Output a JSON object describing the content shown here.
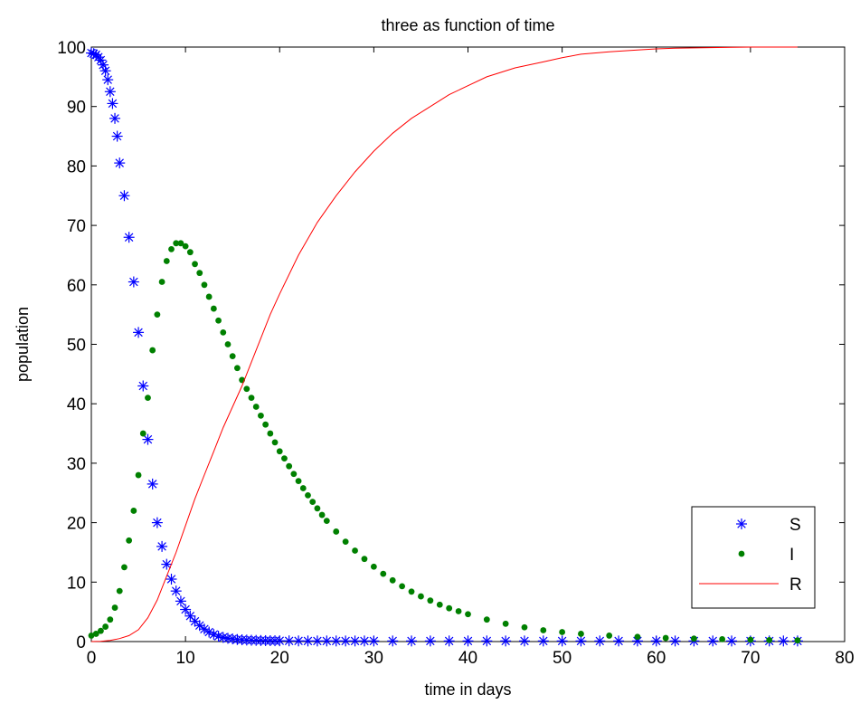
{
  "chart_data": {
    "type": "scatter",
    "title": "three as function of time",
    "xlabel": "time in days",
    "ylabel": "population",
    "xlim": [
      0,
      80
    ],
    "ylim": [
      0,
      100
    ],
    "xticks": [
      "0",
      "10",
      "20",
      "30",
      "40",
      "50",
      "60",
      "70",
      "80"
    ],
    "yticks": [
      "0",
      "10",
      "20",
      "30",
      "40",
      "50",
      "60",
      "70",
      "80",
      "90",
      "100"
    ],
    "grid": false,
    "legend_position": "bottom-right",
    "series": [
      {
        "name": "S",
        "marker": "asterisk",
        "color": "#0000ff",
        "x": [
          0,
          0.25,
          0.5,
          0.75,
          1,
          1.25,
          1.5,
          1.75,
          2,
          2.25,
          2.5,
          2.75,
          3,
          3.5,
          4,
          4.5,
          5,
          5.5,
          6,
          6.5,
          7,
          7.5,
          8,
          8.5,
          9,
          9.5,
          10,
          10.5,
          11,
          11.5,
          12,
          12.5,
          13,
          13.5,
          14,
          14.5,
          15,
          15.5,
          16,
          16.5,
          17,
          17.5,
          18,
          18.5,
          19,
          19.5,
          20,
          21,
          22,
          23,
          24,
          25,
          26,
          27,
          28,
          29,
          30,
          32,
          34,
          36,
          38,
          40,
          42,
          44,
          46,
          48,
          50,
          52,
          54,
          56,
          58,
          60,
          62,
          64,
          66,
          68,
          70,
          72,
          73.5,
          75
        ],
        "y": [
          99,
          98.9,
          98.7,
          98.3,
          97.8,
          97,
          96,
          94.5,
          92.5,
          90.5,
          88,
          85,
          80.5,
          75,
          68,
          60.5,
          52,
          43,
          34,
          26.5,
          20,
          16,
          13,
          10.5,
          8.5,
          6.8,
          5.4,
          4.3,
          3.4,
          2.7,
          2.1,
          1.6,
          1.2,
          0.9,
          0.7,
          0.55,
          0.45,
          0.35,
          0.3,
          0.25,
          0.22,
          0.2,
          0.18,
          0.16,
          0.15,
          0.14,
          0.13,
          0.12,
          0.11,
          0.1,
          0.1,
          0.1,
          0.1,
          0.1,
          0.1,
          0.1,
          0.1,
          0.1,
          0.1,
          0.1,
          0.1,
          0.1,
          0.1,
          0.1,
          0.1,
          0.1,
          0.1,
          0.1,
          0.1,
          0.1,
          0.1,
          0.1,
          0.1,
          0.1,
          0.1,
          0.1,
          0.1,
          0.1,
          0.1,
          0.1
        ]
      },
      {
        "name": "I",
        "marker": "dot",
        "color": "#008000",
        "x": [
          0,
          0.5,
          1,
          1.5,
          2,
          2.5,
          3,
          3.5,
          4,
          4.5,
          5,
          5.5,
          6,
          6.5,
          7,
          7.5,
          8,
          8.5,
          9,
          9.5,
          10,
          10.5,
          11,
          11.5,
          12,
          12.5,
          13,
          13.5,
          14,
          14.5,
          15,
          15.5,
          16,
          16.5,
          17,
          17.5,
          18,
          18.5,
          19,
          19.5,
          20,
          20.5,
          21,
          21.5,
          22,
          22.5,
          23,
          23.5,
          24,
          24.5,
          25,
          26,
          27,
          28,
          29,
          30,
          31,
          32,
          33,
          34,
          35,
          36,
          37,
          38,
          39,
          40,
          42,
          44,
          46,
          48,
          50,
          52,
          55,
          58,
          61,
          64,
          67,
          70,
          72,
          75
        ],
        "y": [
          1,
          1.3,
          1.8,
          2.5,
          3.7,
          5.7,
          8.5,
          12.5,
          17,
          22,
          28,
          35,
          41,
          49,
          55,
          60.5,
          64,
          66,
          67,
          67,
          66.5,
          65.5,
          63.5,
          62,
          60,
          58,
          56,
          54,
          52,
          50,
          48,
          46,
          44,
          42.5,
          41,
          39.5,
          38,
          36.5,
          35,
          33.5,
          32,
          30.8,
          29.5,
          28.2,
          27,
          25.8,
          24.6,
          23.5,
          22.4,
          21.3,
          20.3,
          18.5,
          16.8,
          15.3,
          13.9,
          12.6,
          11.4,
          10.3,
          9.3,
          8.4,
          7.6,
          6.9,
          6.2,
          5.6,
          5.1,
          4.6,
          3.7,
          3,
          2.4,
          1.9,
          1.6,
          1.3,
          1,
          0.8,
          0.6,
          0.5,
          0.4,
          0.3,
          0.25,
          0.2
        ]
      },
      {
        "name": "R",
        "marker": "line",
        "color": "#ff0000",
        "x": [
          0,
          1,
          2,
          3,
          4,
          5,
          6,
          7,
          8,
          9,
          10,
          11,
          12,
          13,
          14,
          15,
          16,
          17,
          18,
          19,
          20,
          22,
          24,
          26,
          28,
          30,
          32,
          34,
          36,
          38,
          40,
          42,
          45,
          48,
          50,
          52,
          55,
          58,
          60,
          62,
          65,
          68,
          70,
          72,
          75
        ],
        "y": [
          0,
          0.05,
          0.2,
          0.5,
          1,
          2,
          4,
          7,
          11,
          15,
          19.5,
          24,
          28,
          32,
          36,
          39.5,
          43,
          47,
          51,
          55,
          58.5,
          65,
          70.5,
          75,
          79,
          82.5,
          85.5,
          88,
          90,
          92,
          93.5,
          95,
          96.5,
          97.5,
          98.2,
          98.8,
          99.2,
          99.5,
          99.7,
          99.8,
          99.9,
          99.95,
          100,
          100,
          100
        ]
      }
    ]
  }
}
